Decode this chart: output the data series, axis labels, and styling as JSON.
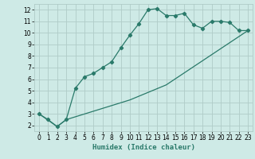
{
  "xlabel": "Humidex (Indice chaleur)",
  "ylabel": "",
  "background_color": "#ceeae6",
  "grid_color": "#b0ccc8",
  "line_color": "#2a7a6a",
  "xlim": [
    -0.5,
    23.5
  ],
  "ylim": [
    1.5,
    12.5
  ],
  "xticks": [
    0,
    1,
    2,
    3,
    4,
    5,
    6,
    7,
    8,
    9,
    10,
    11,
    12,
    13,
    14,
    15,
    16,
    17,
    18,
    19,
    20,
    21,
    22,
    23
  ],
  "yticks": [
    2,
    3,
    4,
    5,
    6,
    7,
    8,
    9,
    10,
    11,
    12
  ],
  "curve1_x": [
    0,
    1,
    2,
    3,
    4,
    5,
    6,
    7,
    8,
    9,
    10,
    11,
    12,
    13,
    14,
    15,
    16,
    17,
    18,
    19,
    20,
    21,
    22,
    23
  ],
  "curve1_y": [
    3.0,
    2.5,
    1.9,
    2.5,
    5.2,
    6.2,
    6.5,
    7.0,
    7.5,
    8.7,
    9.8,
    10.8,
    12.0,
    12.1,
    11.5,
    11.5,
    11.7,
    10.7,
    10.4,
    11.0,
    11.0,
    10.9,
    10.2,
    10.2
  ],
  "curve2_x": [
    0,
    2,
    3,
    10,
    14,
    23
  ],
  "curve2_y": [
    3.0,
    1.9,
    2.5,
    4.2,
    5.5,
    10.2
  ],
  "xlabel_fontsize": 6.5,
  "tick_fontsize": 5.5
}
